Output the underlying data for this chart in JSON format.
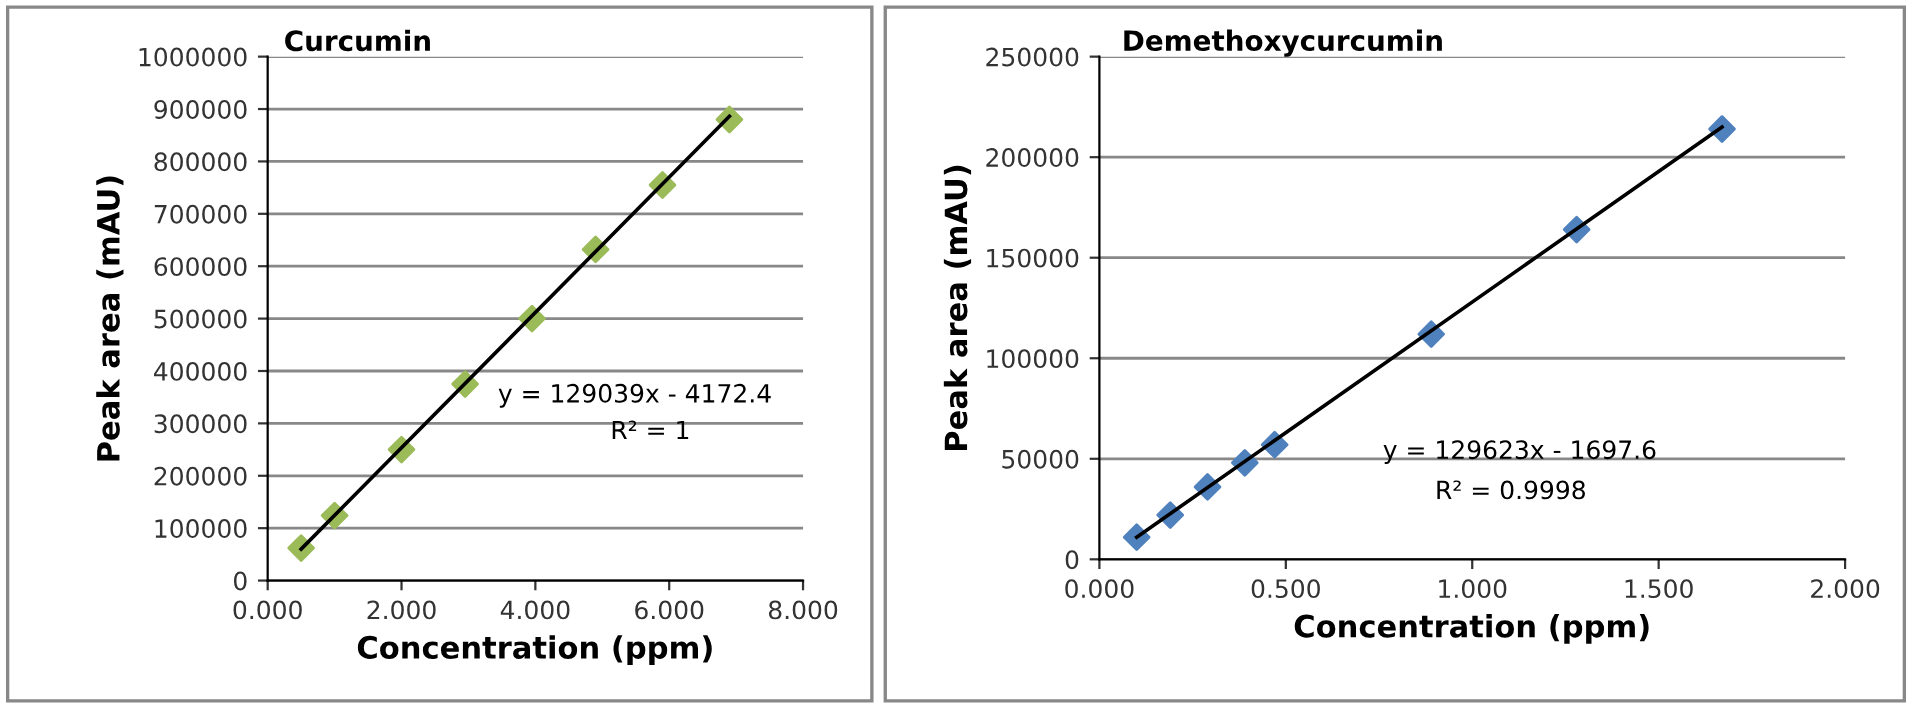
{
  "chart_data": [
    {
      "type": "scatter",
      "title": "Curcumin",
      "xlabel": "Concentration (ppm)",
      "ylabel": "Peak area (mAU)",
      "x": [
        0.5,
        1.0,
        2.0,
        2.95,
        3.95,
        4.9,
        5.9,
        6.9
      ],
      "series": [
        {
          "color": "#9bbb59",
          "marker": "diamond",
          "values": [
            62000,
            124000,
            250000,
            375000,
            500000,
            632000,
            755000,
            880000
          ]
        },
        {
          "type": "line",
          "color": "#000000",
          "x": [
            0.5,
            6.9
          ],
          "values": [
            60000,
            886000
          ],
          "marker": "none"
        }
      ],
      "xlim": [
        0,
        8
      ],
      "xticks": [
        {
          "value": 0,
          "label": "0.000"
        },
        {
          "value": 2,
          "label": "2.000"
        },
        {
          "value": 4,
          "label": "4.000"
        },
        {
          "value": 6,
          "label": "6.000"
        },
        {
          "value": 8,
          "label": "8.000"
        }
      ],
      "ylim": [
        0,
        1000000
      ],
      "yticks": [
        0,
        100000,
        200000,
        300000,
        400000,
        500000,
        600000,
        700000,
        800000,
        900000,
        1000000
      ],
      "annotations": [
        "y = 129039x - 4172.4",
        "R² = 1"
      ],
      "grid": "y",
      "legend": false
    },
    {
      "type": "scatter",
      "title": "Demethoxycurcumin",
      "xlabel": "Concentration (ppm)",
      "ylabel": "Peak area (mAU)",
      "x": [
        0.1,
        0.19,
        0.29,
        0.39,
        0.47,
        0.89,
        1.28,
        1.67
      ],
      "series": [
        {
          "color": "#4f81bd",
          "marker": "diamond",
          "values": [
            11000,
            22000,
            36000,
            48000,
            57000,
            112000,
            164000,
            214000
          ]
        },
        {
          "type": "line",
          "color": "#000000",
          "x": [
            0.1,
            1.67
          ],
          "values": [
            11000,
            215000
          ],
          "marker": "none"
        }
      ],
      "xlim": [
        0,
        2
      ],
      "xticks": [
        {
          "value": 0,
          "label": "0.000"
        },
        {
          "value": 0.5,
          "label": "0.500"
        },
        {
          "value": 1,
          "label": "1.000"
        },
        {
          "value": 1.5,
          "label": "1.500"
        },
        {
          "value": 2,
          "label": "2.000"
        }
      ],
      "ylim": [
        0,
        250000
      ],
      "yticks": [
        0,
        50000,
        100000,
        150000,
        200000,
        250000
      ],
      "annotations": [
        "y = 129623x - 1697.6",
        "R² = 0.9998"
      ],
      "grid": "y",
      "legend": false
    }
  ]
}
